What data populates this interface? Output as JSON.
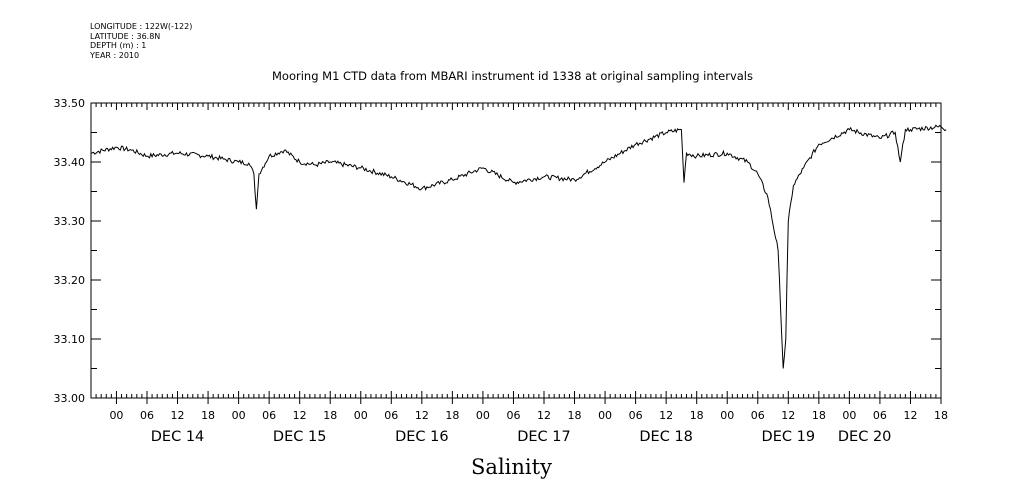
{
  "meta": {
    "longitude": "LONGITUDE : 122W(-122)",
    "latitude": "LATITUDE : 36.8N",
    "depth": "DEPTH (m) : 1",
    "year": "YEAR : 2010"
  },
  "chart_data": {
    "type": "line",
    "title": "Mooring M1 CTD data from MBARI instrument id 1338 at original sampling intervals",
    "xlabel": "Salinity",
    "ylabel": "",
    "ylim": [
      33.0,
      33.5
    ],
    "xlim_hours_from_dec14_00": [
      -5,
      162
    ],
    "y_ticks": [
      "33.00",
      "33.10",
      "33.20",
      "33.30",
      "33.40",
      "33.50"
    ],
    "x_hour_ticks": [
      "00",
      "06",
      "12",
      "18",
      "00",
      "06",
      "12",
      "18",
      "00",
      "06",
      "12",
      "18",
      "00",
      "06",
      "12",
      "18",
      "00",
      "06",
      "12",
      "18",
      "00",
      "06",
      "12",
      "18",
      "00",
      "06",
      "12",
      "18"
    ],
    "x_day_labels": [
      "DEC 14",
      "DEC 15",
      "DEC 16",
      "DEC 17",
      "DEC 18",
      "DEC 19",
      "DEC 20"
    ],
    "grid": false,
    "series": [
      {
        "x": [
          "2010-12-13 19:00",
          "2010-12-14 00:00",
          "2010-12-14 03:00",
          "2010-12-14 06:00",
          "2010-12-14 12:00",
          "2010-12-14 18:00",
          "2010-12-14 21:00",
          "2010-12-15 00:00",
          "2010-12-15 02:00",
          "2010-12-15 03:00",
          "2010-12-15 03:30",
          "2010-12-15 04:00",
          "2010-12-15 06:00",
          "2010-12-15 09:00",
          "2010-12-15 12:00",
          "2010-12-15 15:00",
          "2010-12-15 18:00",
          "2010-12-16 00:00",
          "2010-12-16 06:00",
          "2010-12-16 12:00",
          "2010-12-16 18:00",
          "2010-12-17 00:00",
          "2010-12-17 06:00",
          "2010-12-17 12:00",
          "2010-12-17 18:00",
          "2010-12-18 00:00",
          "2010-12-18 06:00",
          "2010-12-18 12:00",
          "2010-12-18 15:00",
          "2010-12-18 15:30",
          "2010-12-18 16:00",
          "2010-12-18 18:00",
          "2010-12-19 00:00",
          "2010-12-19 04:00",
          "2010-12-19 06:00",
          "2010-12-19 08:00",
          "2010-12-19 10:00",
          "2010-12-19 11:00",
          "2010-12-19 11:30",
          "2010-12-19 12:00",
          "2010-12-19 13:00",
          "2010-12-19 15:00",
          "2010-12-19 18:00",
          "2010-12-20 00:00",
          "2010-12-20 06:00",
          "2010-12-20 09:00",
          "2010-12-20 10:00",
          "2010-12-20 11:00",
          "2010-12-20 12:00",
          "2010-12-20 18:00",
          "2010-12-20 19:00"
        ],
        "values": [
          33.415,
          33.425,
          33.42,
          33.41,
          33.415,
          33.41,
          33.405,
          33.4,
          33.398,
          33.38,
          33.32,
          33.38,
          33.41,
          33.42,
          33.4,
          33.395,
          33.4,
          33.39,
          33.375,
          33.355,
          33.37,
          33.39,
          33.365,
          33.375,
          33.37,
          33.4,
          33.43,
          33.45,
          33.455,
          33.365,
          33.415,
          33.41,
          33.415,
          33.4,
          33.38,
          33.34,
          33.25,
          33.05,
          33.1,
          33.3,
          33.36,
          33.39,
          33.43,
          33.455,
          33.44,
          33.45,
          33.4,
          33.455,
          33.455,
          33.46,
          33.455
        ]
      }
    ]
  }
}
